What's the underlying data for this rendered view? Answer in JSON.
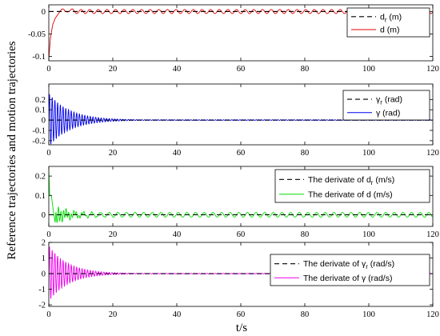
{
  "figure": {
    "ylabel": "Reference trajectories and motion trajectories",
    "xlabel": "t/s"
  },
  "chart_data": [
    {
      "type": "line",
      "xlim": [
        0,
        120
      ],
      "ylim": [
        -0.11,
        0.015
      ],
      "xticks": [
        0,
        20,
        40,
        60,
        80,
        100,
        120
      ],
      "yticks": [
        0,
        -0.05,
        -0.1
      ],
      "ytick_labels": [
        "0",
        "-0.05",
        "-0.1"
      ],
      "grid": false,
      "legend_position": "top-right",
      "series": [
        {
          "name": "d_r (m)",
          "legend_main": "d",
          "legend_sub": "r",
          "legend_unit": " (m)",
          "color": "#000000",
          "style": "dashed",
          "x": [
            0,
            120
          ],
          "y": [
            0,
            0
          ]
        },
        {
          "name": "d (m)",
          "legend_main": "d",
          "legend_sub": "",
          "legend_unit": " (m)",
          "color": "#e00000",
          "style": "solid",
          "x": [
            0,
            0.5,
            1.2,
            2.0,
            3.0,
            4.0,
            5.0,
            6.0,
            8.0,
            10.0,
            120
          ],
          "y": [
            -0.105,
            -0.06,
            -0.03,
            -0.015,
            -0.005,
            0.005,
            -0.002,
            0.004,
            0.0,
            0.0,
            0.0
          ],
          "oscillation": {
            "amplitude": 0.0045,
            "period": 2.7,
            "start": 4
          }
        }
      ]
    },
    {
      "type": "line",
      "xlim": [
        0,
        120
      ],
      "ylim": [
        -0.24,
        0.35
      ],
      "xticks": [
        0,
        20,
        40,
        60,
        80,
        100,
        120
      ],
      "yticks": [
        0.2,
        0.1,
        0,
        -0.1,
        -0.2
      ],
      "ytick_labels": [
        "0.2",
        "0.1",
        "0",
        "-0.1",
        "-0.2"
      ],
      "grid": false,
      "legend_position": "top-right",
      "series": [
        {
          "name": "γ_r (rad)",
          "legend_main": "γ",
          "legend_sub": "r",
          "legend_unit": " (rad)",
          "color": "#000000",
          "style": "dashed",
          "x": [
            0,
            120
          ],
          "y": [
            0,
            0
          ]
        },
        {
          "name": "γ (rad)",
          "legend_main": "γ",
          "legend_sub": "",
          "legend_unit": " (rad)",
          "color": "#0000ee",
          "style": "solid",
          "x": [
            0,
            120
          ],
          "y": [
            0,
            0
          ],
          "oscillation": {
            "amplitude": 0.26,
            "period": 0.85,
            "decay": 6.5,
            "start": 0,
            "floor": 0.003
          }
        }
      ]
    },
    {
      "type": "line",
      "xlim": [
        0,
        120
      ],
      "ylim": [
        -0.06,
        0.25
      ],
      "xticks": [
        0,
        20,
        40,
        60,
        80,
        100,
        120
      ],
      "yticks": [
        0.2,
        0.1,
        0
      ],
      "ytick_labels": [
        "0.2",
        "0.1",
        "0"
      ],
      "grid": false,
      "legend_position": "top-right",
      "series": [
        {
          "name": "The derivate of d_r (m/s)",
          "legend_main": "The derivate of d",
          "legend_sub": "r",
          "legend_unit": " (m/s)",
          "color": "#000000",
          "style": "dashed",
          "x": [
            0,
            120
          ],
          "y": [
            0,
            0
          ]
        },
        {
          "name": "The derivate of d (m/s)",
          "legend_main": "The derivate of d",
          "legend_sub": "",
          "legend_unit": " (m/s)",
          "color": "#00dd00",
          "style": "solid",
          "x": [
            0,
            0.3,
            0.8,
            1.4,
            2.0,
            3.0,
            120
          ],
          "y": [
            0.23,
            0.1,
            0.1,
            0.02,
            -0.04,
            0.0,
            0.0
          ],
          "oscillation": {
            "amplitude": 0.012,
            "period": 2.7,
            "start": 2,
            "burst_amplitude": 0.04,
            "burst_decay": 5
          }
        }
      ]
    },
    {
      "type": "line",
      "xlim": [
        0,
        120
      ],
      "ylim": [
        -2.1,
        2.0
      ],
      "xticks": [
        0,
        20,
        40,
        60,
        80,
        100,
        120
      ],
      "yticks": [
        2,
        1,
        0,
        -1,
        -2
      ],
      "ytick_labels": [
        "2",
        "1",
        "0",
        "-1",
        "-2"
      ],
      "grid": false,
      "legend_position": "top-right",
      "series": [
        {
          "name": "The derivate of γ_r (rad/s)",
          "legend_main": "The derivate of γ",
          "legend_sub": "r",
          "legend_unit": " (rad/s)",
          "color": "#000000",
          "style": "dashed",
          "x": [
            0,
            120
          ],
          "y": [
            0,
            0
          ]
        },
        {
          "name": "The derivate of γ (rad/s)",
          "legend_main": "The derivate of γ",
          "legend_sub": "",
          "legend_unit": " (rad/s)",
          "color": "#ee00ee",
          "style": "solid",
          "x": [
            0,
            120
          ],
          "y": [
            0,
            0
          ],
          "oscillation": {
            "amplitude": 1.8,
            "period": 0.85,
            "decay": 6,
            "start": 0,
            "floor": 0.02
          }
        }
      ]
    }
  ]
}
